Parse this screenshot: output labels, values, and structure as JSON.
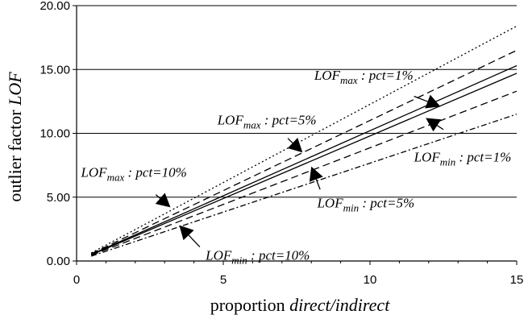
{
  "chart_data": {
    "type": "line",
    "title": "",
    "xlabel": {
      "plain": "proportion ",
      "italic": "direct/indirect"
    },
    "ylabel": {
      "plain": "outlier factor ",
      "italic": "LOF"
    },
    "xlim": [
      0,
      15
    ],
    "ylim": [
      0,
      20
    ],
    "xticks": [
      "0",
      "5",
      "10",
      "15"
    ],
    "yticks": [
      "0.00",
      "5.00",
      "10.00",
      "15.00",
      "20.00"
    ],
    "grid": "horizontal",
    "x": [
      0.5,
      15
    ],
    "series": [
      {
        "key": "max_pct1",
        "style": "dotted",
        "values": [
          0.63,
          18.4
        ]
      },
      {
        "key": "max_pct5",
        "style": "dashed",
        "values": [
          0.57,
          16.5
        ]
      },
      {
        "key": "max_pct10",
        "style": "solid",
        "values": [
          0.52,
          15.3
        ]
      },
      {
        "key": "min_pct10",
        "style": "solid",
        "values": [
          0.48,
          14.7
        ]
      },
      {
        "key": "min_pct5",
        "style": "dashed",
        "values": [
          0.44,
          13.3
        ]
      },
      {
        "key": "min_pct1",
        "style": "dashdot",
        "values": [
          0.38,
          11.5
        ]
      }
    ],
    "annotations": [
      {
        "key": "ann_max1",
        "sym": "LOF",
        "sub": "max",
        "rest": " : pct=1%",
        "text_at": [
          8.1,
          14.2
        ],
        "arrow_from": [
          11.5,
          12.9
        ],
        "arrow_to": [
          12.4,
          12.1
        ]
      },
      {
        "key": "ann_max5",
        "sym": "LOF",
        "sub": "max",
        "rest": " : pct=5%",
        "text_at": [
          4.8,
          10.7
        ],
        "arrow_from": [
          7.2,
          9.6
        ],
        "arrow_to": [
          7.7,
          8.5
        ]
      },
      {
        "key": "ann_max10",
        "sym": "LOF",
        "sub": "max",
        "rest": " : pct=10%",
        "text_at": [
          0.15,
          6.6
        ],
        "arrow_from": [
          2.7,
          5.2
        ],
        "arrow_to": [
          3.2,
          4.2
        ]
      },
      {
        "key": "ann_min1",
        "sym": "LOF",
        "sub": "min",
        "rest": " : pct=1%",
        "text_at": [
          11.5,
          7.8
        ],
        "arrow_from": [
          12.5,
          10.3
        ],
        "arrow_to": [
          11.9,
          11.2
        ]
      },
      {
        "key": "ann_min5",
        "sym": "LOF",
        "sub": "min",
        "rest": " : pct=5%",
        "text_at": [
          8.2,
          4.2
        ],
        "arrow_from": [
          8.3,
          5.6
        ],
        "arrow_to": [
          8.0,
          7.4
        ]
      },
      {
        "key": "ann_min10",
        "sym": "LOF",
        "sub": "min",
        "rest": " : pct=10%",
        "text_at": [
          4.4,
          0.1
        ],
        "arrow_from": [
          4.2,
          1.1
        ],
        "arrow_to": [
          3.5,
          2.8
        ]
      }
    ]
  }
}
